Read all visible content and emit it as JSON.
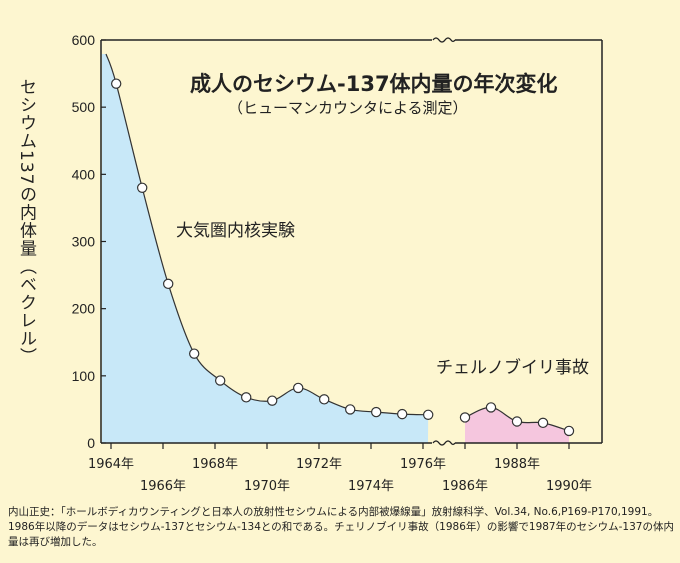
{
  "chart_data": {
    "type": "area",
    "title": "成人のセシウム-137体内量の年次変化",
    "subtitle": "（ヒューマンカウンタによる測定）",
    "ylabel": "セシウム137の内体量（ベクレル）",
    "xlabel": "",
    "ylim": [
      0,
      600
    ],
    "yticks": [
      "0",
      "100",
      "200",
      "300",
      "400",
      "500",
      "600"
    ],
    "x_axis_break": true,
    "grid": false,
    "series": [
      {
        "fill": "#c8e8f8",
        "x": [
          1964.2,
          1965.2,
          1966.2,
          1967.2,
          1968.2,
          1969.2,
          1970.2,
          1971.2,
          1972.2,
          1973.2,
          1974.2,
          1975.2,
          1976.2
        ],
        "y": [
          535,
          380,
          237,
          133,
          93,
          68,
          63,
          82,
          65,
          50,
          46,
          43,
          42
        ]
      },
      {
        "fill": "#f5c6de",
        "x": [
          1986,
          1987,
          1988,
          1989,
          1990
        ],
        "y": [
          38,
          53,
          32,
          30,
          18
        ]
      }
    ],
    "xticks_upper": [
      "1964年",
      "1968年",
      "1972年",
      "1976年",
      "1988年"
    ],
    "xticks_lower": [
      "1966年",
      "1970年",
      "1974年",
      "1986年",
      "1990年"
    ],
    "annotations": [
      "大気圏内核実験",
      "チェルノブイリ事故"
    ]
  },
  "footnote": [
    "内山正史：「ホールボディカウンティングと日本人の放射性セシウムによる内部被爆線量」放射線科学、Vol.34, No.6,P169-P170,1991。",
    "1986年以降のデータはセシウム-137とセシウム-134との和である。チェリノブイリ事故（1986年）の影響で1987年のセシウム-137の体内",
    "量は再び増加した。"
  ],
  "colors": {
    "area_early": "#c8e8f8",
    "area_late": "#f5c6de",
    "background": "#fdf6d0"
  }
}
